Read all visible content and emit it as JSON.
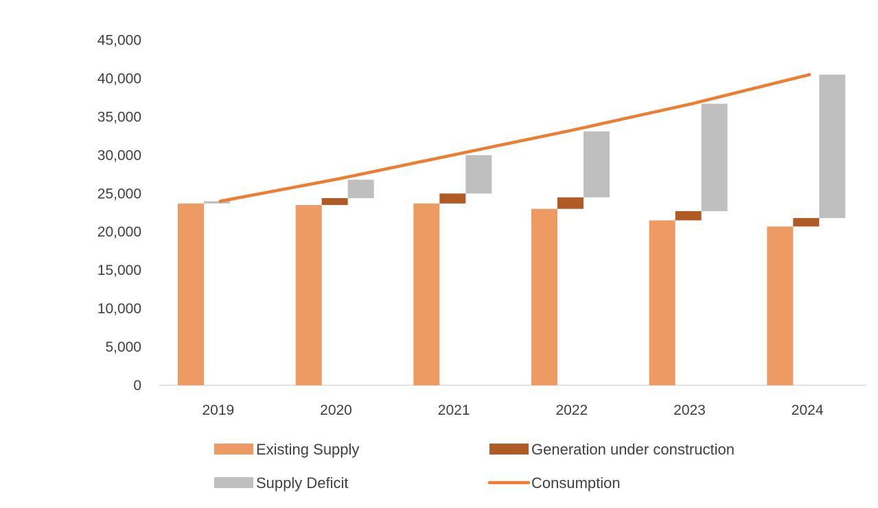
{
  "chart_data": {
    "type": "bar",
    "title": "",
    "xlabel": "",
    "ylabel": "",
    "ylim": [
      0,
      45000
    ],
    "yticks": [
      0,
      5000,
      10000,
      15000,
      20000,
      25000,
      30000,
      35000,
      40000,
      45000
    ],
    "ytick_labels": [
      "0",
      "5,000",
      "10,000",
      "15,000",
      "20,000",
      "25,000",
      "30,000",
      "35,000",
      "40,000",
      "45,000"
    ],
    "categories": [
      "2019",
      "2020",
      "2021",
      "2022",
      "2023",
      "2024"
    ],
    "grid": false,
    "legend_position": "bottom",
    "series": [
      {
        "name": "Existing Supply",
        "kind": "bar",
        "color": "#ED9A63",
        "values": [
          23700,
          23500,
          23700,
          23000,
          21500,
          20700
        ]
      },
      {
        "name": "Generation under construction",
        "kind": "floating-bar",
        "color": "#B05A24",
        "base": [
          23700,
          23500,
          23700,
          23000,
          21500,
          20700
        ],
        "values": [
          0,
          900,
          1300,
          1500,
          1200,
          1100
        ]
      },
      {
        "name": "Supply Deficit",
        "kind": "floating-bar",
        "color": "#BFBFBF",
        "base": [
          23700,
          24400,
          25000,
          24500,
          22700,
          21800
        ],
        "values": [
          300,
          2400,
          5000,
          8600,
          14000,
          18700
        ]
      },
      {
        "name": "Consumption",
        "kind": "line",
        "color": "#ED7D31",
        "values": [
          24000,
          26900,
          30100,
          33300,
          36700,
          40500
        ]
      }
    ]
  }
}
